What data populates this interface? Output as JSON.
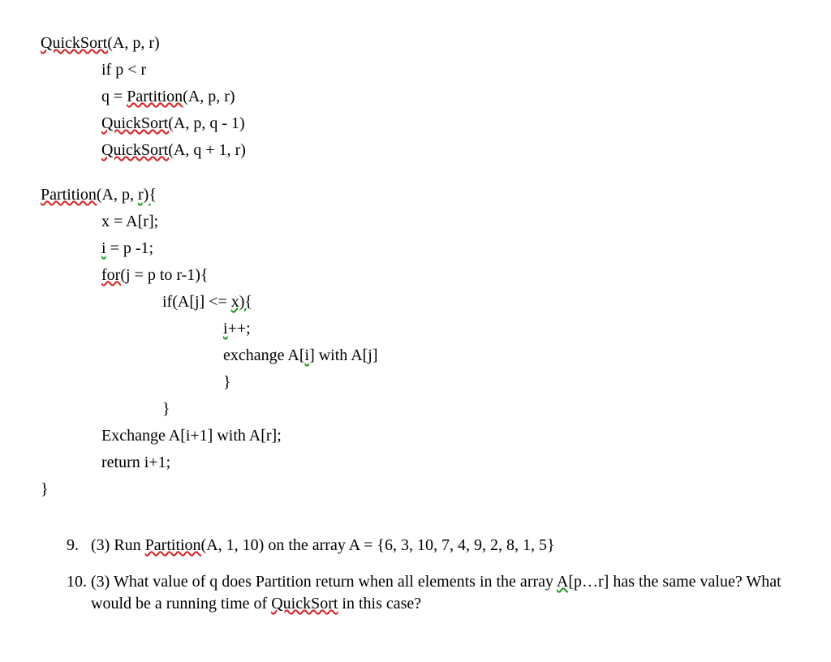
{
  "algo": {
    "qs_header_name": "QuickSort(",
    "qs_header_args": "A, p, r)",
    "qs_line1": "if p < r",
    "qs_line2_a": "q = ",
    "qs_line2_b": "Partition(",
    "qs_line2_c": "A, p, r)",
    "qs_line3_a": "QuickSort(",
    "qs_line3_b": "A, p, q - 1)",
    "qs_line4_a": "QuickSort(",
    "qs_line4_b": "A, q + 1, r)",
    "p_header_a": "Partition(",
    "p_header_b": "A, p, ",
    "p_header_c": "r){",
    "p_line1": "x = A[r];",
    "p_line2_a": "i",
    "p_line2_b": " = p -1;",
    "p_line3_a": "for(",
    "p_line3_b": "j",
    "p_line3_c": " = p to r-1){",
    "p_line4_a": "if(A[j] <= ",
    "p_line4_b": "x){",
    "p_line5_a": "i",
    "p_line5_b": "++;",
    "p_line6_a": "exchange A[",
    "p_line6_b": "i",
    "p_line6_c": "] with A[j]",
    "p_line7": "}",
    "p_line8": "}",
    "p_line9": "Exchange A[i+1] with A[r];",
    "p_line10": "return i+1;",
    "p_close": "}"
  },
  "q9": {
    "num": "9.",
    "pts": "(3) ",
    "a": "Run ",
    "b": "Partition(",
    "c": "A, 1, 10) on the array A = {6, 3, 10, 7, 4, 9, 2, 8, 1, 5}"
  },
  "q10": {
    "num": "10.",
    "pts": "(3) ",
    "a": "What value of q does Partition return when all elements in the array ",
    "b": "A[",
    "c": "p…r] has the same value? What would be a running time of ",
    "d": "QuickSort",
    "e": " in this case?"
  }
}
